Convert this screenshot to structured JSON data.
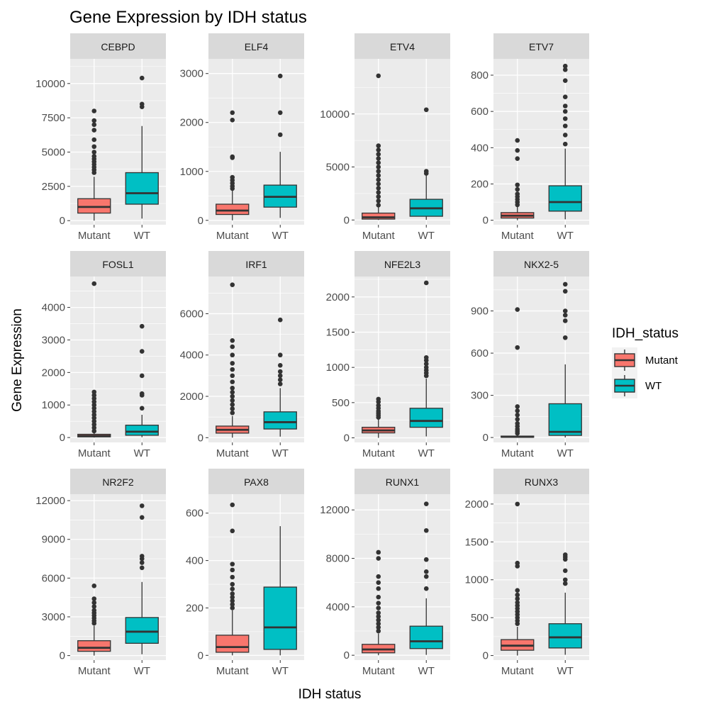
{
  "title": "Gene Expression by IDH status",
  "xlabel": "IDH status",
  "ylabel": "Gene Expression",
  "legend": {
    "title": "IDH_status",
    "position": "right",
    "items": [
      {
        "label": "Mutant",
        "color": "#F8766D"
      },
      {
        "label": "WT",
        "color": "#00BFC4"
      }
    ]
  },
  "colors": {
    "panel_bg": "#EBEBEB",
    "strip_bg": "#D9D9D9",
    "grid": "#FFFFFF",
    "box_line": "#333333",
    "tick_text": "#4D4D4D"
  },
  "chart_data": {
    "type": "box",
    "grid": true,
    "categories": [
      "Mutant",
      "WT"
    ],
    "panels": [
      {
        "gene": "CEBPD",
        "ylim": [
          -300,
          11800
        ],
        "yticks": [
          0,
          2500,
          5000,
          7500,
          10000
        ],
        "boxes": [
          {
            "group": "Mutant",
            "whisker_low": 0,
            "q1": 550,
            "median": 1000,
            "q3": 1600,
            "whisker_high": 3200,
            "outliers": [
              3500,
              3700,
              3900,
              4100,
              4300,
              4500,
              4700,
              5000,
              5400,
              5900,
              6600,
              7000,
              7300,
              8000
            ]
          },
          {
            "group": "WT",
            "whisker_low": 150,
            "q1": 1200,
            "median": 2000,
            "q3": 3500,
            "whisker_high": 6900,
            "outliers": [
              8300,
              8500,
              10400
            ]
          }
        ]
      },
      {
        "gene": "ELF4",
        "ylim": [
          -90,
          3300
        ],
        "yticks": [
          0,
          1000,
          2000,
          3000
        ],
        "boxes": [
          {
            "group": "Mutant",
            "whisker_low": 0,
            "q1": 120,
            "median": 200,
            "q3": 330,
            "whisker_high": 620,
            "outliers": [
              650,
              700,
              760,
              820,
              880,
              1280,
              1300,
              2050,
              2200
            ]
          },
          {
            "group": "WT",
            "whisker_low": 50,
            "q1": 270,
            "median": 480,
            "q3": 720,
            "whisker_high": 1400,
            "outliers": [
              1750,
              2200,
              2950
            ]
          }
        ]
      },
      {
        "gene": "ETV4",
        "ylim": [
          -450,
          15200
        ],
        "yticks": [
          0,
          5000,
          10000
        ],
        "boxes": [
          {
            "group": "Mutant",
            "whisker_low": 0,
            "q1": 80,
            "median": 250,
            "q3": 650,
            "whisker_high": 1200,
            "outliers": [
              1400,
              1800,
              2200,
              2600,
              3000,
              3400,
              3800,
              4200,
              4600,
              5000,
              5400,
              5800,
              6200,
              6600,
              7000,
              13600
            ]
          },
          {
            "group": "WT",
            "whisker_low": 20,
            "q1": 350,
            "median": 1100,
            "q3": 1950,
            "whisker_high": 4200,
            "outliers": [
              4400,
              4600,
              10400
            ]
          }
        ]
      },
      {
        "gene": "ETV7",
        "ylim": [
          -25,
          890
        ],
        "yticks": [
          0,
          200,
          400,
          600,
          800
        ],
        "boxes": [
          {
            "group": "Mutant",
            "whisker_low": 0,
            "q1": 12,
            "median": 25,
            "q3": 42,
            "whisker_high": 75,
            "outliers": [
              85,
              100,
              115,
              130,
              145,
              170,
              195,
              340,
              385,
              440
            ]
          },
          {
            "group": "WT",
            "whisker_low": 5,
            "q1": 50,
            "median": 100,
            "q3": 190,
            "whisker_high": 395,
            "outliers": [
              420,
              470,
              520,
              560,
              600,
              630,
              680,
              770,
              830,
              850
            ]
          }
        ]
      },
      {
        "gene": "FOSL1",
        "ylim": [
          -150,
          4950
        ],
        "yticks": [
          0,
          1000,
          2000,
          3000,
          4000
        ],
        "boxes": [
          {
            "group": "Mutant",
            "whisker_low": 0,
            "q1": 20,
            "median": 50,
            "q3": 100,
            "whisker_high": 160,
            "outliers": [
              200,
              300,
              400,
              500,
              600,
              700,
              800,
              900,
              1000,
              1100,
              1200,
              1300,
              1400,
              4730
            ]
          },
          {
            "group": "WT",
            "whisker_low": 10,
            "q1": 70,
            "median": 180,
            "q3": 380,
            "whisker_high": 700,
            "outliers": [
              900,
              1300,
              1350,
              1900,
              2650,
              3420
            ]
          }
        ]
      },
      {
        "gene": "IRF1",
        "ylim": [
          -230,
          7800
        ],
        "yticks": [
          0,
          2000,
          4000,
          6000
        ],
        "boxes": [
          {
            "group": "Mutant",
            "whisker_low": 0,
            "q1": 220,
            "median": 380,
            "q3": 560,
            "whisker_high": 1050,
            "outliers": [
              1200,
              1400,
              1600,
              1800,
              2000,
              2200,
              2400,
              2700,
              3000,
              3300,
              3600,
              4000,
              4400,
              4700,
              7400
            ]
          },
          {
            "group": "WT",
            "whisker_low": 50,
            "q1": 420,
            "median": 750,
            "q3": 1250,
            "whisker_high": 2400,
            "outliers": [
              2600,
              2800,
              3000,
              3200,
              3500,
              4000,
              5700
            ]
          }
        ]
      },
      {
        "gene": "NFE2L3",
        "ylim": [
          -65,
          2290
        ],
        "yticks": [
          0,
          500,
          1000,
          1500,
          2000
        ],
        "boxes": [
          {
            "group": "Mutant",
            "whisker_low": 0,
            "q1": 70,
            "median": 105,
            "q3": 150,
            "whisker_high": 270,
            "outliers": [
              290,
              320,
              350,
              380,
              420,
              460,
              510,
              550
            ]
          },
          {
            "group": "WT",
            "whisker_low": 20,
            "q1": 150,
            "median": 240,
            "q3": 420,
            "whisker_high": 840,
            "outliers": [
              880,
              920,
              960,
              1000,
              1050,
              1100,
              1140,
              2200
            ]
          }
        ]
      },
      {
        "gene": "NKX2-5",
        "ylim": [
          -35,
          1145
        ],
        "yticks": [
          0,
          300,
          600,
          900
        ],
        "boxes": [
          {
            "group": "Mutant",
            "whisker_low": 0,
            "q1": 2,
            "median": 5,
            "q3": 10,
            "whisker_high": 20,
            "outliers": [
              30,
              45,
              60,
              80,
              100,
              130,
              160,
              190,
              220,
              640,
              910
            ]
          },
          {
            "group": "WT",
            "whisker_low": 0,
            "q1": 15,
            "median": 40,
            "q3": 240,
            "whisker_high": 520,
            "outliers": [
              710,
              830,
              870,
              900,
              1040,
              1090
            ]
          }
        ]
      },
      {
        "gene": "NR2F2",
        "ylim": [
          -350,
          12500
        ],
        "yticks": [
          0,
          3000,
          6000,
          9000,
          12000
        ],
        "boxes": [
          {
            "group": "Mutant",
            "whisker_low": 0,
            "q1": 330,
            "median": 600,
            "q3": 1150,
            "whisker_high": 2300,
            "outliers": [
              2500,
              2700,
              2900,
              3100,
              3300,
              3500,
              3800,
              4100,
              4400,
              5400
            ]
          },
          {
            "group": "WT",
            "whisker_low": 100,
            "q1": 950,
            "median": 1850,
            "q3": 2950,
            "whisker_high": 5700,
            "outliers": [
              6800,
              7200,
              7500,
              7700,
              10700,
              11600
            ]
          }
        ]
      },
      {
        "gene": "PAX8",
        "ylim": [
          -20,
          680
        ],
        "yticks": [
          0,
          200,
          400,
          600
        ],
        "boxes": [
          {
            "group": "Mutant",
            "whisker_low": 0,
            "q1": 13,
            "median": 35,
            "q3": 85,
            "whisker_high": 190,
            "outliers": [
              200,
              215,
              230,
              245,
              260,
              280,
              300,
              330,
              360,
              385,
              525,
              635
            ]
          },
          {
            "group": "WT",
            "whisker_low": 0,
            "q1": 25,
            "median": 118,
            "q3": 288,
            "whisker_high": 545,
            "outliers": []
          }
        ]
      },
      {
        "gene": "RUNX1",
        "ylim": [
          -400,
          13300
        ],
        "yticks": [
          0,
          4000,
          8000,
          12000
        ],
        "boxes": [
          {
            "group": "Mutant",
            "whisker_low": 0,
            "q1": 200,
            "median": 480,
            "q3": 900,
            "whisker_high": 1800,
            "outliers": [
              2000,
              2300,
              2600,
              2900,
              3200,
              3500,
              3900,
              4300,
              4800,
              5500,
              6000,
              6500,
              8000,
              8500
            ]
          },
          {
            "group": "WT",
            "whisker_low": 30,
            "q1": 550,
            "median": 1150,
            "q3": 2400,
            "whisker_high": 4700,
            "outliers": [
              5500,
              6500,
              6900,
              7900,
              10300,
              12500
            ]
          }
        ]
      },
      {
        "gene": "RUNX3",
        "ylim": [
          -60,
          2130
        ],
        "yticks": [
          0,
          500,
          1000,
          1500,
          2000
        ],
        "boxes": [
          {
            "group": "Mutant",
            "whisker_low": 0,
            "q1": 70,
            "median": 130,
            "q3": 210,
            "whisker_high": 380,
            "outliers": [
              420,
              460,
              500,
              540,
              580,
              620,
              660,
              700,
              750,
              800,
              860,
              1180,
              1220,
              2000
            ]
          },
          {
            "group": "WT",
            "whisker_low": 10,
            "q1": 100,
            "median": 240,
            "q3": 420,
            "whisker_high": 830,
            "outliers": [
              950,
              1000,
              1120,
              1270,
              1300,
              1330
            ]
          }
        ]
      }
    ]
  }
}
